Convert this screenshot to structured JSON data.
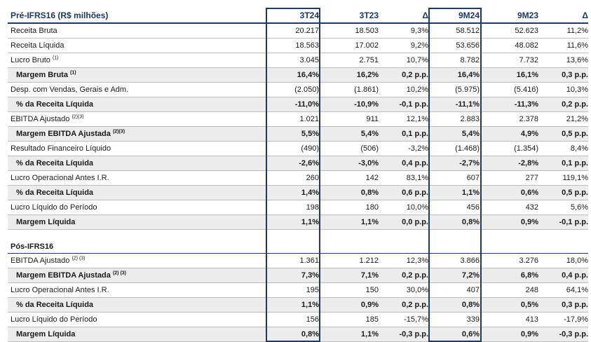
{
  "columns": [
    "3T24",
    "3T23",
    "Δ",
    "9M24",
    "9M23",
    "Δ"
  ],
  "sections": [
    {
      "title": "Pré-IFRS16 (R$ milhões)",
      "rows": [
        {
          "label": "Receita Bruta",
          "sup": "",
          "bold": false,
          "values": [
            "20.217",
            "18.503",
            "9,3%",
            "58.512",
            "52.623",
            "11,2%"
          ]
        },
        {
          "label": "Receita Líquida",
          "sup": "",
          "bold": false,
          "values": [
            "18.563",
            "17.002",
            "9,2%",
            "53.656",
            "48.082",
            "11,6%"
          ]
        },
        {
          "label": "Lucro Bruto",
          "sup": "(1)",
          "bold": false,
          "values": [
            "3.045",
            "2.751",
            "10,7%",
            "8.782",
            "7.732",
            "13,6%"
          ]
        },
        {
          "label": "Margem Bruta",
          "sup": "(1)",
          "bold": true,
          "values": [
            "16,4%",
            "16,2%",
            "0,2 p.p.",
            "16,4%",
            "16,1%",
            "0,3 p.p."
          ]
        },
        {
          "label": "Desp. com Vendas, Gerais e Adm.",
          "sup": "",
          "bold": false,
          "values": [
            "(2.050)",
            "(1.861)",
            "10,2%",
            "(5.975)",
            "(5.416)",
            "10,3%"
          ]
        },
        {
          "label": "% da Receita Líquida",
          "sup": "",
          "bold": true,
          "values": [
            "-11,0%",
            "-10,9%",
            "-0,1 p.p.",
            "-11,1%",
            "-11,3%",
            "0,2 p.p."
          ]
        },
        {
          "label": "EBITDA Ajustado",
          "sup": "(2)(3)",
          "bold": false,
          "values": [
            "1.021",
            "911",
            "12,1%",
            "2.883",
            "2.378",
            "21,2%"
          ]
        },
        {
          "label": "Margem EBITDA Ajustada",
          "sup": "(2)(3)",
          "bold": true,
          "values": [
            "5,5%",
            "5,4%",
            "0,1 p.p.",
            "5,4%",
            "4,9%",
            "0,5 p.p."
          ]
        },
        {
          "label": "Resultado Financeiro Líquido",
          "sup": "",
          "bold": false,
          "values": [
            "(490)",
            "(506)",
            "-3,2%",
            "(1.468)",
            "(1.354)",
            "8,4%"
          ]
        },
        {
          "label": "% da Receita Líquida",
          "sup": "",
          "bold": true,
          "values": [
            "-2,6%",
            "-3,0%",
            "0,4 p.p.",
            "-2,7%",
            "-2,8%",
            "0,1 p.p."
          ]
        },
        {
          "label": "Lucro Operacional Antes I.R.",
          "sup": "",
          "bold": false,
          "values": [
            "260",
            "142",
            "83,1%",
            "607",
            "277",
            "119,1%"
          ]
        },
        {
          "label": "% da Receita Líquida",
          "sup": "",
          "bold": true,
          "values": [
            "1,4%",
            "0,8%",
            "0,6 p.p.",
            "1,1%",
            "0,6%",
            "0,5 p.p."
          ]
        },
        {
          "label": "Lucro Líquido do Período",
          "sup": "",
          "bold": false,
          "values": [
            "198",
            "180",
            "10,0%",
            "456",
            "432",
            "5,6%"
          ]
        },
        {
          "label": "Margem Líquida",
          "sup": "",
          "bold": true,
          "values": [
            "1,1%",
            "1,1%",
            "0,0 p.p.",
            "0,8%",
            "0,9%",
            "-0,1 p.p."
          ]
        }
      ]
    },
    {
      "title": "Pós-IFRS16",
      "rows": [
        {
          "label": "EBITDA Ajustado",
          "sup": "(2) (3)",
          "bold": false,
          "values": [
            "1.361",
            "1.212",
            "12,3%",
            "3.866",
            "3.276",
            "18,0%"
          ]
        },
        {
          "label": "Margem EBITDA Ajustada",
          "sup": "(2) (3)",
          "bold": true,
          "values": [
            "7,3%",
            "7,1%",
            "0,2 p.p.",
            "7,2%",
            "6,8%",
            "0,4 p.p."
          ]
        },
        {
          "label": "Lucro Operacional Antes I.R.",
          "sup": "",
          "bold": false,
          "values": [
            "195",
            "150",
            "30,0%",
            "407",
            "248",
            "64,1%"
          ]
        },
        {
          "label": "% da Receita Líquida",
          "sup": "",
          "bold": true,
          "values": [
            "1,1%",
            "0,9%",
            "0,2 p.p.",
            "0,8%",
            "0,5%",
            "0,3 p.p."
          ]
        },
        {
          "label": "Lucro Líquido do Período",
          "sup": "",
          "bold": false,
          "values": [
            "156",
            "185",
            "-15,7%",
            "339",
            "413",
            "-17,9%"
          ]
        },
        {
          "label": "Margem Líquida",
          "sup": "",
          "bold": true,
          "values": [
            "0,8%",
            "1,1%",
            "-0,3 p.p.",
            "0,6%",
            "0,9%",
            "-0,3 p.p."
          ]
        }
      ]
    }
  ],
  "colors": {
    "header_navy": "#1f3864",
    "highlight_gray": "#ececec"
  }
}
